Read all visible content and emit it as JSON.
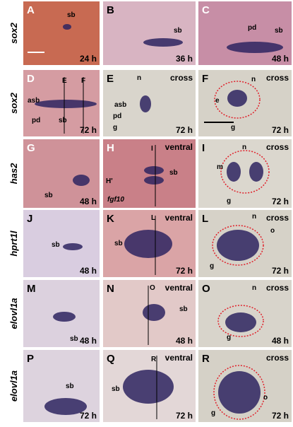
{
  "row_labels": [
    "sox2",
    "sox2",
    "has2",
    "hprt1l",
    "elovl1a",
    "elovl1a"
  ],
  "panels": [
    {
      "letter": "A",
      "time": "24 h",
      "annotations": [
        "sb"
      ]
    },
    {
      "letter": "B",
      "time": "36 h",
      "annotations": [
        "sb"
      ]
    },
    {
      "letter": "C",
      "time": "48 h",
      "annotations": [
        "pd",
        "sb"
      ]
    },
    {
      "letter": "D",
      "time": "72 h",
      "annotations": [
        "asb",
        "pd",
        "sb",
        "E",
        "F"
      ]
    },
    {
      "letter": "E",
      "view": "cross",
      "time": "72 h",
      "annotations": [
        "n",
        "asb",
        "pd",
        "g"
      ]
    },
    {
      "letter": "F",
      "view": "cross",
      "time": "72 h",
      "annotations": [
        "n",
        "e",
        "g"
      ]
    },
    {
      "letter": "G",
      "time": "48 h",
      "annotations": [
        "sb"
      ]
    },
    {
      "letter": "H",
      "view": "ventral",
      "annotations": [
        "I",
        "sb",
        "H'",
        "fgf10"
      ]
    },
    {
      "letter": "I",
      "view": "cross",
      "time": "72 h",
      "annotations": [
        "n",
        "m",
        "g"
      ]
    },
    {
      "letter": "J",
      "time": "48 h",
      "annotations": [
        "sb"
      ]
    },
    {
      "letter": "K",
      "view": "ventral",
      "time": "72 h",
      "annotations": [
        "L",
        "sb"
      ]
    },
    {
      "letter": "L",
      "view": "cross",
      "time": "72 h",
      "annotations": [
        "n",
        "o",
        "g"
      ]
    },
    {
      "letter": "M",
      "time": "48 h",
      "annotations": [
        "sb"
      ]
    },
    {
      "letter": "N",
      "view": "ventral",
      "time": "48 h",
      "annotations": [
        "O",
        "sb"
      ]
    },
    {
      "letter": "O",
      "view": "cross",
      "time": "48 h",
      "annotations": [
        "n",
        "g"
      ]
    },
    {
      "letter": "P",
      "time": "72 h",
      "annotations": [
        "sb"
      ]
    },
    {
      "letter": "Q",
      "view": "ventral",
      "time": "72 h",
      "annotations": [
        "R",
        "sb"
      ]
    },
    {
      "letter": "R",
      "view": "cross",
      "time": "72 h",
      "annotations": [
        "o",
        "g"
      ]
    }
  ]
}
